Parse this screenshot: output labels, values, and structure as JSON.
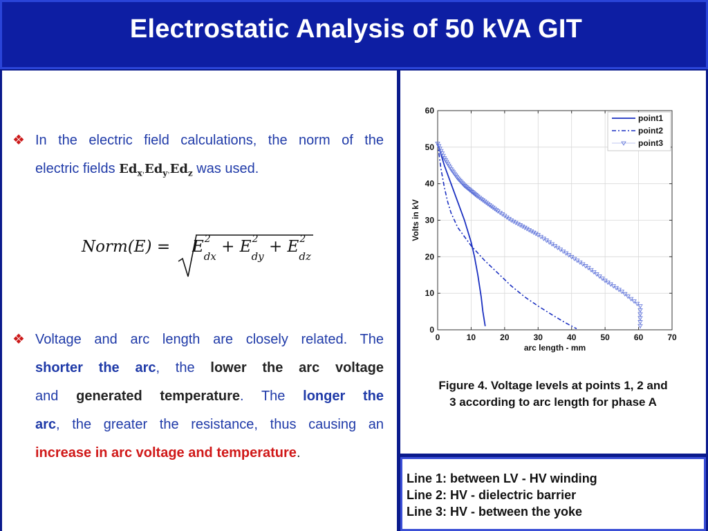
{
  "header": {
    "title": "Electrostatic Analysis of 50 kVA GIT"
  },
  "left": {
    "bullet1": {
      "line1": "In the electric field calculations, the norm of the",
      "line2_pre": "electric fields ",
      "ed": "Ed",
      "sub_x": "x",
      "sub_y": "y",
      "sub_z": "z",
      "comma": ",",
      "line2_post": " was used."
    },
    "formula": {
      "lhs": "Norm(E) =",
      "e": "E",
      "sq": "2",
      "sub_dx": "dx",
      "sub_dy": "dy",
      "sub_dz": "dz",
      "plus": "+"
    },
    "bullet2": {
      "t1": "Voltage and arc length are closely related. The",
      "t2a": "shorter the arc",
      "t2b": ", the ",
      "t2c": "lower the arc voltage",
      "t3a": "and ",
      "t3b": "generated temperature",
      "t3c": ". The ",
      "t3d": "longer the",
      "t4a": "arc",
      "t4b": ", the greater the resistance, thus causing an",
      "t5a": "increase in arc voltage and temperature",
      "t5b": "."
    }
  },
  "figure": {
    "caption_line1": "Figure 4. Voltage levels at points 1, 2 and",
    "caption_line2": "3 according to arc length for phase A"
  },
  "notes": {
    "line1": "Line 1: between LV - HV winding",
    "line2": "Line 2: HV - dielectric barrier",
    "line3": "Line 3: HV - between the yoke"
  },
  "chart_data": {
    "type": "line",
    "xlabel": "arc length - mm",
    "ylabel": "Volts in kV",
    "xlim": [
      0,
      70
    ],
    "ylim": [
      0,
      60
    ],
    "xticks": [
      0,
      10,
      20,
      30,
      40,
      50,
      60,
      70
    ],
    "yticks": [
      0,
      10,
      20,
      30,
      40,
      50,
      60
    ],
    "grid": true,
    "legend_position": "top-right",
    "series": [
      {
        "name": "point1",
        "style": "solid",
        "color": "#1a2fc0",
        "x": [
          0,
          2,
          4,
          6,
          8,
          10,
          11,
          12,
          13,
          13.5,
          14.2
        ],
        "y": [
          51,
          45,
          40,
          35,
          30,
          24,
          20,
          15,
          9,
          5,
          1
        ]
      },
      {
        "name": "point2",
        "style": "dashdot",
        "color": "#1a2fc0",
        "x": [
          0,
          1,
          2,
          3,
          4,
          6,
          8,
          10,
          14,
          18,
          22,
          26,
          30,
          34,
          38,
          41.5
        ],
        "y": [
          51,
          44,
          39,
          35,
          32,
          28,
          25.5,
          23,
          19,
          15.5,
          12,
          9,
          6.5,
          4.2,
          2,
          0.3
        ]
      },
      {
        "name": "point3",
        "style": "marker",
        "color": "#5a6fd8",
        "x": [
          0,
          2,
          4,
          6,
          8,
          10,
          12,
          15,
          18,
          22,
          26,
          30,
          35,
          40,
          45,
          50,
          55,
          60.5,
          60.5
        ],
        "y": [
          51,
          47,
          44,
          41.5,
          39.5,
          38,
          36.5,
          34.5,
          32.5,
          30,
          28,
          26,
          23,
          20,
          17,
          13.5,
          10.5,
          6.5,
          0
        ]
      }
    ]
  }
}
